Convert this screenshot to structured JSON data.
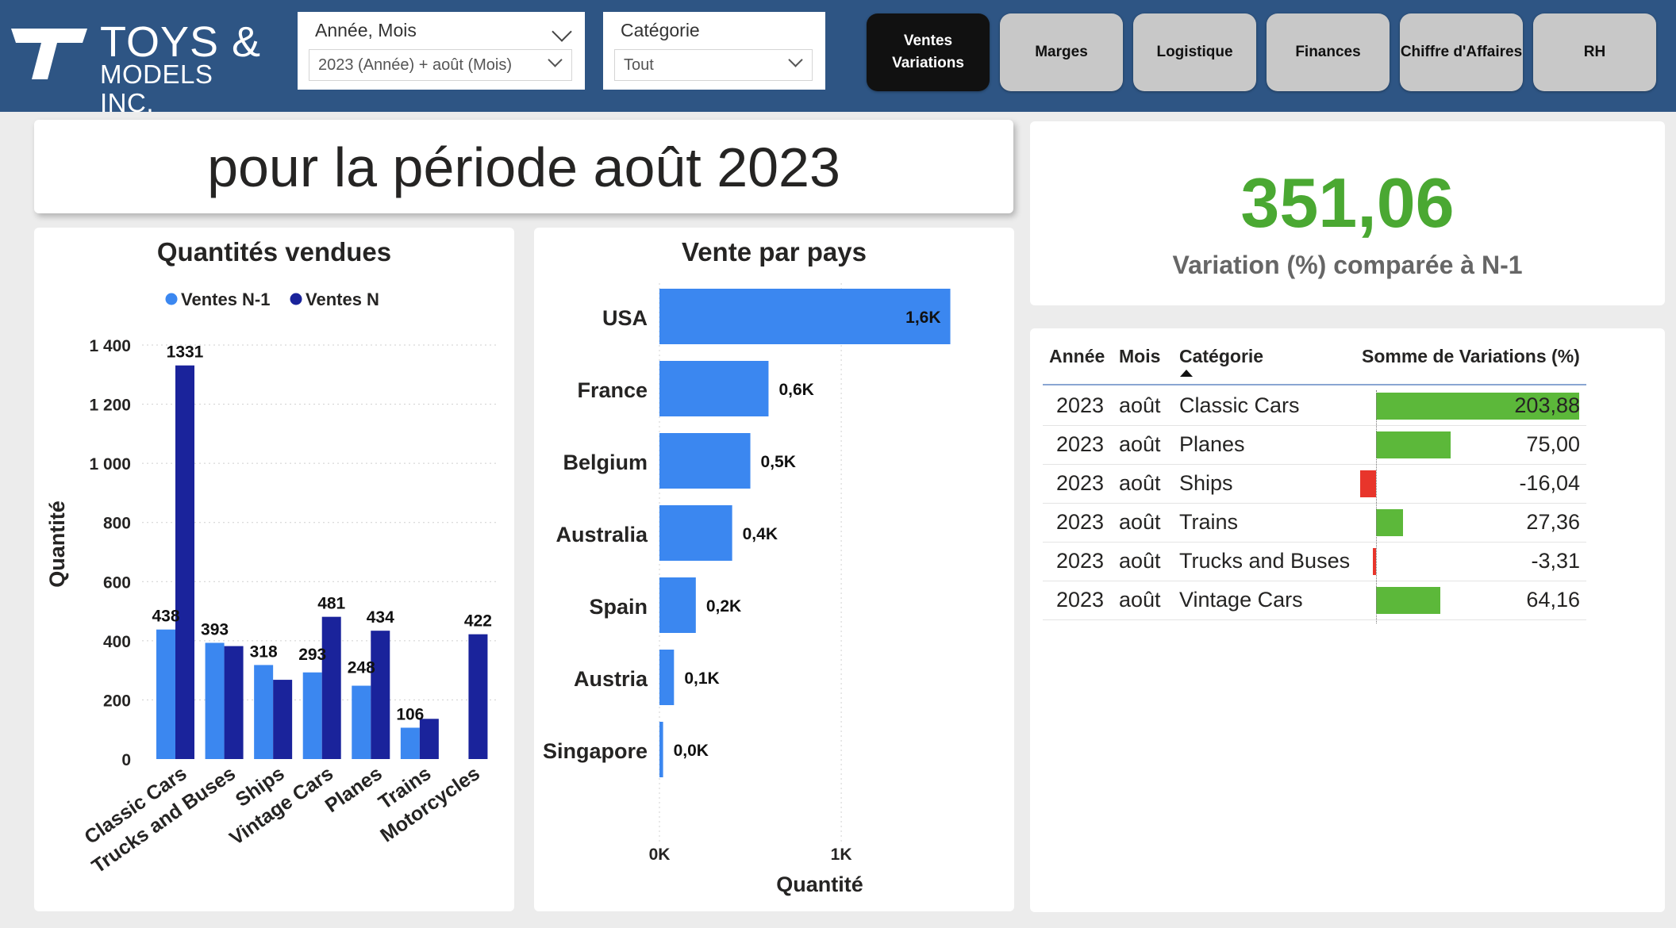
{
  "brand": {
    "line1": "TOYS &",
    "line2": "MODELS INC."
  },
  "slicers": {
    "period": {
      "title": "Année, Mois",
      "value": "2023 (Année) + août (Mois)"
    },
    "category": {
      "title": "Catégorie",
      "value": "Tout"
    }
  },
  "nav": [
    {
      "label": "Ventes Variations",
      "active": true
    },
    {
      "label": "Marges",
      "active": false
    },
    {
      "label": "Logistique",
      "active": false
    },
    {
      "label": "Finances",
      "active": false
    },
    {
      "label": "Chiffre d'Affaires",
      "active": false
    },
    {
      "label": "RH",
      "active": false
    }
  ],
  "period_title": "pour la période août 2023",
  "kpi": {
    "value": "351,06",
    "label": "Variation (%) comparée à N-1"
  },
  "colors": {
    "n1": "#3b87f0",
    "n": "#1a239b",
    "green": "#5cb83a",
    "red": "#e8352b",
    "header": "#2e5584"
  },
  "table": {
    "headers": {
      "year": "Année",
      "month": "Mois",
      "category": "Catégorie",
      "value": "Somme de Variations (%)"
    },
    "rows": [
      {
        "year": "2023",
        "month": "août",
        "category": "Classic Cars",
        "value": "203,88",
        "num": 203.88
      },
      {
        "year": "2023",
        "month": "août",
        "category": "Planes",
        "value": "75,00",
        "num": 75.0
      },
      {
        "year": "2023",
        "month": "août",
        "category": "Ships",
        "value": "-16,04",
        "num": -16.04
      },
      {
        "year": "2023",
        "month": "août",
        "category": "Trains",
        "value": "27,36",
        "num": 27.36
      },
      {
        "year": "2023",
        "month": "août",
        "category": "Trucks and Buses",
        "value": "-3,31",
        "num": -3.31
      },
      {
        "year": "2023",
        "month": "août",
        "category": "Vintage Cars",
        "value": "64,16",
        "num": 64.16
      }
    ]
  },
  "chart_data": [
    {
      "type": "bar",
      "title": "Quantités vendues",
      "ylabel": "Quantité",
      "xlabel": "",
      "legend_position": "top",
      "categories": [
        "Classic Cars",
        "Trucks and Buses",
        "Ships",
        "Vintage Cars",
        "Planes",
        "Trains",
        "Motorcycles"
      ],
      "series": [
        {
          "name": "Ventes N-1",
          "values": [
            438,
            393,
            318,
            293,
            248,
            106,
            null
          ]
        },
        {
          "name": "Ventes N",
          "values": [
            1331,
            382,
            268,
            481,
            434,
            136,
            422
          ]
        }
      ],
      "data_labels": [
        "438",
        "1331",
        "393",
        "318",
        "293",
        "481",
        "248",
        "434",
        "106",
        "422"
      ],
      "yticks": [
        "0",
        "200",
        "400",
        "600",
        "800",
        "1 000",
        "1 200",
        "1 400"
      ],
      "ylim": [
        0,
        1400
      ],
      "grid": true
    },
    {
      "type": "bar",
      "orientation": "horizontal",
      "title": "Vente par pays",
      "xlabel": "Quantité",
      "categories": [
        "USA",
        "France",
        "Belgium",
        "Australia",
        "Spain",
        "Austria",
        "Singapore"
      ],
      "values": [
        1600,
        600,
        500,
        400,
        200,
        80,
        20
      ],
      "data_labels": [
        "1,6K",
        "0,6K",
        "0,5K",
        "0,4K",
        "0,2K",
        "0,1K",
        "0,0K"
      ],
      "xticks": [
        "0K",
        "1K"
      ],
      "xlim": [
        0,
        1650
      ],
      "grid": true
    }
  ]
}
